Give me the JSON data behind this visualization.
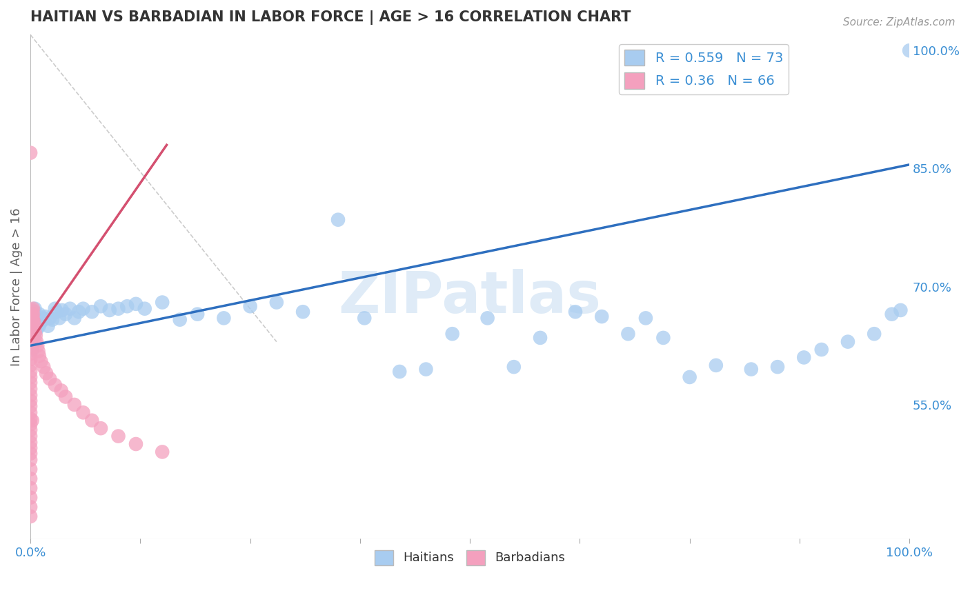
{
  "title": "HAITIAN VS BARBADIAN IN LABOR FORCE | AGE > 16 CORRELATION CHART",
  "source_text": "Source: ZipAtlas.com",
  "ylabel": "In Labor Force | Age > 16",
  "watermark": "ZIPatlas",
  "xlim": [
    0.0,
    1.0
  ],
  "ylim": [
    0.38,
    1.02
  ],
  "right_yticks": [
    0.55,
    0.7,
    0.85,
    1.0
  ],
  "right_yticklabels": [
    "55.0%",
    "70.0%",
    "85.0%",
    "100.0%"
  ],
  "haitian_R": 0.559,
  "haitian_N": 73,
  "barbadian_R": 0.36,
  "barbadian_N": 66,
  "haitian_color": "#A8CCF0",
  "barbadian_color": "#F4A0BE",
  "haitian_line_color": "#2E6FBF",
  "barbadian_line_color": "#D45070",
  "ref_line_color": "#CCCCCC",
  "background_color": "#FFFFFF",
  "grid_color": "#DDDDDD",
  "title_color": "#333333",
  "seed": 99,
  "haitian_x_raw": [
    0.0,
    0.001,
    0.002,
    0.002,
    0.003,
    0.003,
    0.004,
    0.004,
    0.005,
    0.005,
    0.006,
    0.006,
    0.007,
    0.007,
    0.008,
    0.008,
    0.009,
    0.01,
    0.01,
    0.012,
    0.014,
    0.015,
    0.017,
    0.02,
    0.022,
    0.025,
    0.028,
    0.03,
    0.033,
    0.036,
    0.04,
    0.045,
    0.05,
    0.055,
    0.06,
    0.07,
    0.08,
    0.09,
    0.1,
    0.11,
    0.12,
    0.13,
    0.15,
    0.17,
    0.19,
    0.22,
    0.25,
    0.28,
    0.31,
    0.35,
    0.38,
    0.42,
    0.45,
    0.48,
    0.52,
    0.55,
    0.58,
    0.62,
    0.65,
    0.68,
    0.7,
    0.72,
    0.75,
    0.78,
    0.82,
    0.85,
    0.88,
    0.9,
    0.93,
    0.96,
    0.98,
    0.99,
    1.0
  ],
  "haitian_y_raw": [
    0.635,
    0.645,
    0.62,
    0.655,
    0.648,
    0.66,
    0.638,
    0.668,
    0.642,
    0.672,
    0.65,
    0.66,
    0.645,
    0.655,
    0.648,
    0.658,
    0.652,
    0.65,
    0.665,
    0.655,
    0.66,
    0.658,
    0.662,
    0.65,
    0.66,
    0.658,
    0.672,
    0.668,
    0.66,
    0.67,
    0.665,
    0.672,
    0.66,
    0.668,
    0.672,
    0.668,
    0.675,
    0.67,
    0.672,
    0.675,
    0.678,
    0.672,
    0.68,
    0.658,
    0.665,
    0.66,
    0.675,
    0.68,
    0.668,
    0.785,
    0.66,
    0.592,
    0.595,
    0.64,
    0.66,
    0.598,
    0.635,
    0.668,
    0.662,
    0.64,
    0.66,
    0.635,
    0.585,
    0.6,
    0.595,
    0.598,
    0.61,
    0.62,
    0.63,
    0.64,
    0.665,
    0.67,
    1.0
  ],
  "barbadian_x_raw": [
    0.0,
    0.0,
    0.0,
    0.0,
    0.0,
    0.0,
    0.0,
    0.0,
    0.0,
    0.0,
    0.0,
    0.0,
    0.0,
    0.0,
    0.0,
    0.0,
    0.0,
    0.0,
    0.0,
    0.0,
    0.0,
    0.0,
    0.0,
    0.001,
    0.001,
    0.001,
    0.001,
    0.002,
    0.002,
    0.002,
    0.003,
    0.003,
    0.003,
    0.004,
    0.004,
    0.005,
    0.005,
    0.006,
    0.007,
    0.008,
    0.009,
    0.01,
    0.012,
    0.015,
    0.018,
    0.022,
    0.028,
    0.035,
    0.04,
    0.05,
    0.06,
    0.07,
    0.08,
    0.1,
    0.12,
    0.15,
    0.0,
    0.0,
    0.0,
    0.0,
    0.0,
    0.0,
    0.0,
    0.0,
    0.001,
    0.002
  ],
  "barbadian_y_raw": [
    0.65,
    0.645,
    0.638,
    0.63,
    0.622,
    0.615,
    0.608,
    0.6,
    0.592,
    0.585,
    0.578,
    0.57,
    0.562,
    0.555,
    0.548,
    0.54,
    0.532,
    0.525,
    0.518,
    0.51,
    0.502,
    0.495,
    0.488,
    0.66,
    0.652,
    0.645,
    0.638,
    0.67,
    0.662,
    0.655,
    0.672,
    0.665,
    0.658,
    0.655,
    0.648,
    0.65,
    0.642,
    0.638,
    0.63,
    0.625,
    0.618,
    0.612,
    0.605,
    0.598,
    0.59,
    0.583,
    0.575,
    0.568,
    0.56,
    0.55,
    0.54,
    0.53,
    0.52,
    0.51,
    0.5,
    0.49,
    0.48,
    0.468,
    0.456,
    0.444,
    0.432,
    0.42,
    0.408,
    0.87,
    0.66,
    0.53
  ],
  "haitian_line_x": [
    0.0,
    1.0
  ],
  "haitian_line_y": [
    0.625,
    0.855
  ],
  "barbadian_line_x": [
    0.0,
    0.155
  ],
  "barbadian_line_y": [
    0.63,
    0.88
  ]
}
